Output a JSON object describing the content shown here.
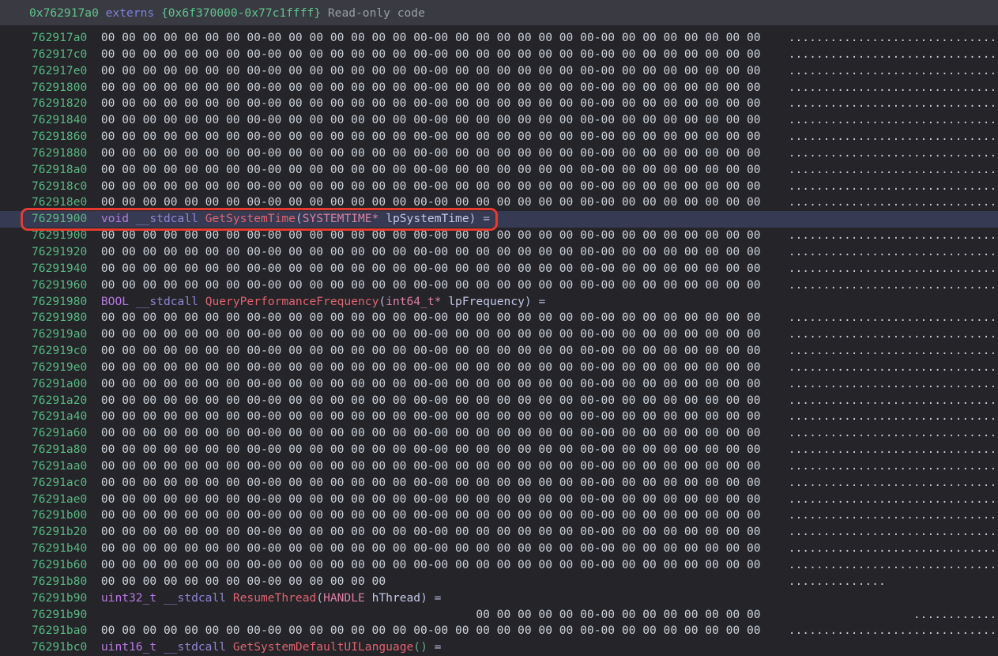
{
  "header": {
    "address": "0x762917a0",
    "segment_label": "externs",
    "range": "{0x6f370000-0x77c1ffff}",
    "note": "Read-only code"
  },
  "colors": {
    "main_bg": "#242429",
    "header_bg": "#3a3b42",
    "row_highlight_bg": "#363a52",
    "annotation_red": "#e33b30",
    "address_green": "#57b981",
    "header_address_green": "#5ec58d",
    "header_label_blue": "#7b82dd",
    "header_note_gray": "#999ea6",
    "hex_bytes": "#cdd2da",
    "ascii_dots": "#c8cdd8",
    "type": "#b87ae0",
    "calling_convention": "#8e86d2",
    "function_name": "#e0636e",
    "param_type": "#dd80a4",
    "param_name": "#c4c8e8",
    "punctuation": "#b6bade",
    "empty_parens": "#6ba586"
  },
  "patterns": {
    "full": {
      "hex_run": "00 00 00 00 00 00 00 00-00 00 00 00 00 00 00 00-00 00 00 00 00 00 00 00-00 00 00 00 00 00 00 00",
      "hex_indent": 0,
      "ascii_run": "................................",
      "ascii_indent": 0
    },
    "head14": {
      "hex_run": "00 00 00 00 00 00 00 00-00 00 00 00 00 00",
      "hex_indent": 0,
      "ascii_run": "..............",
      "ascii_indent": 0
    },
    "tail14": {
      "hex_run": "00 00 00 00 00 00-00 00 00 00 00 00 00 00",
      "hex_indent": 54,
      "ascii_run": "..............",
      "ascii_indent": 18
    }
  },
  "declarations": {
    "get_system_time": [
      {
        "text": "void",
        "role": "type"
      },
      {
        "text": " ",
        "role": "plain"
      },
      {
        "text": "__stdcall",
        "role": "conv"
      },
      {
        "text": " ",
        "role": "plain"
      },
      {
        "text": "GetSystemTime",
        "role": "func"
      },
      {
        "text": "(",
        "role": "punct"
      },
      {
        "text": "SYSTEMTIME*",
        "role": "ptype"
      },
      {
        "text": " ",
        "role": "plain"
      },
      {
        "text": "lpSystemTime",
        "role": "param"
      },
      {
        "text": ") =",
        "role": "punct"
      }
    ],
    "query_performance_frequency": [
      {
        "text": "BOOL",
        "role": "type"
      },
      {
        "text": " ",
        "role": "plain"
      },
      {
        "text": "__stdcall",
        "role": "conv"
      },
      {
        "text": " ",
        "role": "plain"
      },
      {
        "text": "QueryPerformanceFrequency",
        "role": "func"
      },
      {
        "text": "(",
        "role": "punct"
      },
      {
        "text": "int64_t*",
        "role": "ptype"
      },
      {
        "text": " ",
        "role": "plain"
      },
      {
        "text": "lpFrequency",
        "role": "param"
      },
      {
        "text": ") =",
        "role": "punct"
      }
    ],
    "resume_thread": [
      {
        "text": "uint32_t",
        "role": "type"
      },
      {
        "text": " ",
        "role": "plain"
      },
      {
        "text": "__stdcall",
        "role": "conv"
      },
      {
        "text": " ",
        "role": "plain"
      },
      {
        "text": "ResumeThread",
        "role": "func"
      },
      {
        "text": "(",
        "role": "punct"
      },
      {
        "text": "HANDLE",
        "role": "ptype"
      },
      {
        "text": " ",
        "role": "plain"
      },
      {
        "text": "hThread",
        "role": "param"
      },
      {
        "text": ") =",
        "role": "punct"
      }
    ],
    "get_system_default_ui_language": [
      {
        "text": "uint16_t",
        "role": "type"
      },
      {
        "text": " ",
        "role": "plain"
      },
      {
        "text": "__stdcall",
        "role": "conv"
      },
      {
        "text": " ",
        "role": "plain"
      },
      {
        "text": "GetSystemDefaultUILanguage",
        "role": "func"
      },
      {
        "text": "()",
        "role": "empty_parens"
      },
      {
        "text": " =",
        "role": "punct"
      }
    ]
  },
  "rows": [
    {
      "address": "762917a0",
      "pattern": "full"
    },
    {
      "address": "762917c0",
      "pattern": "full"
    },
    {
      "address": "762917e0",
      "pattern": "full"
    },
    {
      "address": "76291800",
      "pattern": "full"
    },
    {
      "address": "76291820",
      "pattern": "full"
    },
    {
      "address": "76291840",
      "pattern": "full"
    },
    {
      "address": "76291860",
      "pattern": "full"
    },
    {
      "address": "76291880",
      "pattern": "full"
    },
    {
      "address": "762918a0",
      "pattern": "full"
    },
    {
      "address": "762918c0",
      "pattern": "full"
    },
    {
      "address": "762918e0",
      "pattern": "full"
    },
    {
      "address": "76291900",
      "decl": "get_system_time",
      "highlight": true,
      "annotated": true
    },
    {
      "address": "76291900",
      "pattern": "full"
    },
    {
      "address": "76291920",
      "pattern": "full"
    },
    {
      "address": "76291940",
      "pattern": "full"
    },
    {
      "address": "76291960",
      "pattern": "full"
    },
    {
      "address": "76291980",
      "decl": "query_performance_frequency"
    },
    {
      "address": "76291980",
      "pattern": "full"
    },
    {
      "address": "762919a0",
      "pattern": "full"
    },
    {
      "address": "762919c0",
      "pattern": "full"
    },
    {
      "address": "762919e0",
      "pattern": "full"
    },
    {
      "address": "76291a00",
      "pattern": "full"
    },
    {
      "address": "76291a20",
      "pattern": "full"
    },
    {
      "address": "76291a40",
      "pattern": "full"
    },
    {
      "address": "76291a60",
      "pattern": "full"
    },
    {
      "address": "76291a80",
      "pattern": "full"
    },
    {
      "address": "76291aa0",
      "pattern": "full"
    },
    {
      "address": "76291ac0",
      "pattern": "full"
    },
    {
      "address": "76291ae0",
      "pattern": "full"
    },
    {
      "address": "76291b00",
      "pattern": "full"
    },
    {
      "address": "76291b20",
      "pattern": "full"
    },
    {
      "address": "76291b40",
      "pattern": "full"
    },
    {
      "address": "76291b60",
      "pattern": "full"
    },
    {
      "address": "76291b80",
      "pattern": "head14"
    },
    {
      "address": "76291b90",
      "decl": "resume_thread"
    },
    {
      "address": "76291b90",
      "pattern": "tail14"
    },
    {
      "address": "76291ba0",
      "pattern": "full"
    },
    {
      "address": "76291bc0",
      "decl": "get_system_default_ui_language"
    }
  ]
}
